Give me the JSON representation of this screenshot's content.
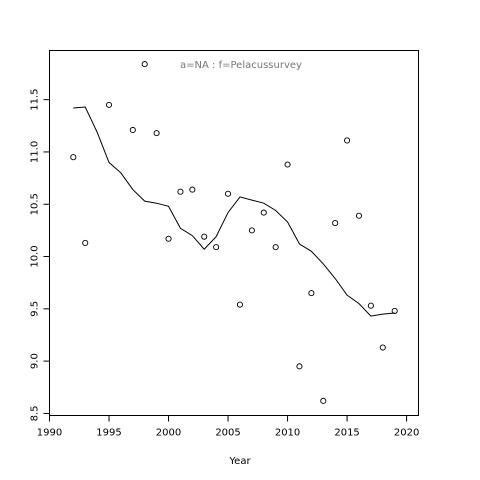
{
  "chart_data": {
    "type": "scatter",
    "title": "",
    "annotation": "a=NA  :  f=Pelacussurvey",
    "xlabel": "Year",
    "ylabel": "",
    "xlim": [
      1990,
      2021
    ],
    "ylim": [
      8.48,
      11.97
    ],
    "x_ticks": [
      1990,
      1995,
      2000,
      2005,
      2010,
      2015,
      2020
    ],
    "y_ticks": [
      8.5,
      9.0,
      9.5,
      10.0,
      10.5,
      11.0,
      11.5
    ],
    "grid": false,
    "legend": "none",
    "colors": {
      "points": "#000000",
      "line": "#000000",
      "annotation": "#777777"
    },
    "series": [
      {
        "kind": "points",
        "x": [
          1992,
          1993,
          1995,
          1997,
          1998,
          1999,
          2000,
          2001,
          2002,
          2003,
          2004,
          2005,
          2006,
          2007,
          2008,
          2009,
          2010,
          2011,
          2012,
          2013,
          2014,
          2015,
          2016,
          2017,
          2018,
          2019
        ],
        "y": [
          10.95,
          10.13,
          11.45,
          11.21,
          11.84,
          11.18,
          10.17,
          10.62,
          10.64,
          10.19,
          10.09,
          10.6,
          9.54,
          10.25,
          10.42,
          10.09,
          10.88,
          8.95,
          9.65,
          8.62,
          10.32,
          11.11,
          10.39,
          9.53,
          9.13,
          9.48
        ]
      },
      {
        "kind": "line",
        "x": [
          1992,
          1993,
          1994,
          1995,
          1996,
          1997,
          1998,
          1999,
          2000,
          2001,
          2002,
          2003,
          2004,
          2005,
          2006,
          2007,
          2008,
          2009,
          2010,
          2011,
          2012,
          2013,
          2014,
          2015,
          2016,
          2017,
          2018,
          2019
        ],
        "y": [
          11.42,
          11.43,
          11.19,
          10.9,
          10.8,
          10.64,
          10.53,
          10.51,
          10.48,
          10.27,
          10.2,
          10.07,
          10.19,
          10.42,
          10.57,
          10.54,
          10.51,
          10.44,
          10.33,
          10.12,
          10.05,
          9.93,
          9.79,
          9.63,
          9.55,
          9.43,
          9.45,
          9.46
        ]
      }
    ]
  }
}
